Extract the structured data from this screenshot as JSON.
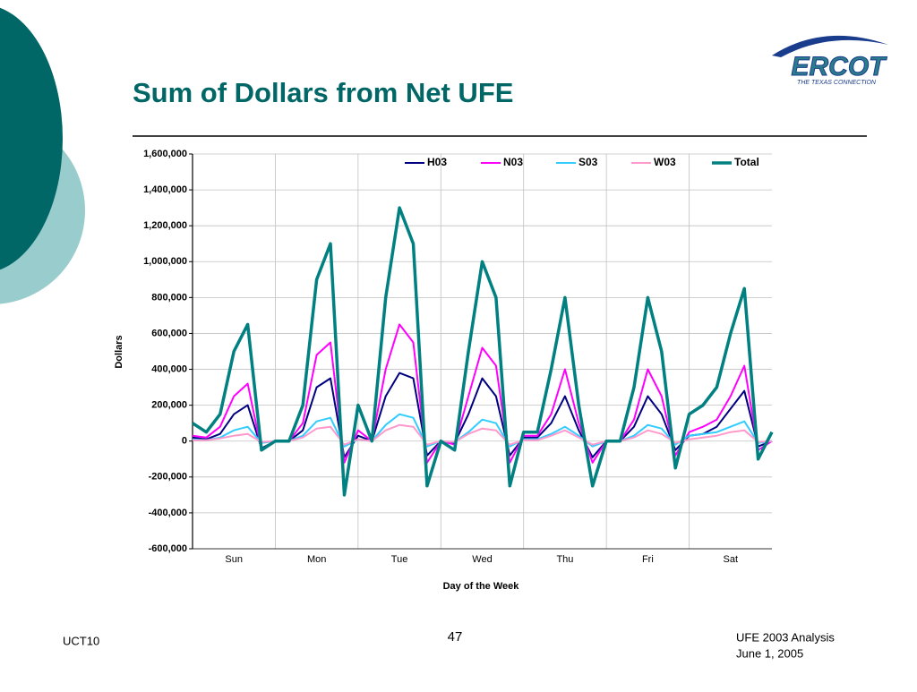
{
  "header": {
    "title": "Sum of Dollars from Net UFE",
    "logo": "ERCOT",
    "logo_tagline": "THE TEXAS CONNECTION"
  },
  "chart_data": {
    "type": "line",
    "xlabel": "Day of the Week",
    "ylabel": "Dollars",
    "x": [
      0,
      4,
      8,
      12,
      16,
      20,
      24,
      28,
      32,
      36,
      40,
      44,
      48,
      52,
      56,
      60,
      64,
      68,
      72,
      76,
      80,
      84,
      88,
      92,
      96,
      100,
      104,
      108,
      112,
      116,
      120,
      124,
      128,
      132,
      136,
      140,
      144,
      148,
      152,
      156,
      160,
      164,
      168
    ],
    "xlim": [
      0,
      168
    ],
    "xticks": [
      {
        "value": 12,
        "label": "Sun"
      },
      {
        "value": 36,
        "label": "Mon"
      },
      {
        "value": 60,
        "label": "Tue"
      },
      {
        "value": 84,
        "label": "Wed"
      },
      {
        "value": 108,
        "label": "Thu"
      },
      {
        "value": 132,
        "label": "Fri"
      },
      {
        "value": 156,
        "label": "Sat"
      }
    ],
    "ylim": [
      -600000,
      1600000
    ],
    "yticks": [
      {
        "value": -600000,
        "label": "-600,000"
      },
      {
        "value": -400000,
        "label": "-400,000"
      },
      {
        "value": -200000,
        "label": "-200,000"
      },
      0,
      {
        "value": 200000,
        "label": "200,000"
      },
      {
        "value": 400000,
        "label": "400,000"
      },
      {
        "value": 600000,
        "label": "600,000"
      },
      {
        "value": 800000,
        "label": "800,000"
      },
      {
        "value": 1000000,
        "label": "1,000,000"
      },
      {
        "value": 1200000,
        "label": "1,200,000"
      },
      {
        "value": 1400000,
        "label": "1,400,000"
      },
      {
        "value": 1600000,
        "label": "1,600,000"
      }
    ],
    "grid": true,
    "legend": "top",
    "series": [
      {
        "name": "H03",
        "color": "#000080",
        "values": [
          20000,
          10000,
          40000,
          150000,
          200000,
          -40000,
          0,
          0,
          60000,
          300000,
          350000,
          -90000,
          30000,
          0,
          250000,
          380000,
          350000,
          -80000,
          0,
          -10000,
          150000,
          350000,
          250000,
          -80000,
          20000,
          20000,
          100000,
          250000,
          60000,
          -90000,
          0,
          0,
          80000,
          250000,
          150000,
          -50000,
          30000,
          40000,
          80000,
          180000,
          280000,
          -30000,
          0
        ]
      },
      {
        "name": "N03",
        "color": "#ff00ff",
        "values": [
          30000,
          20000,
          80000,
          250000,
          320000,
          -50000,
          0,
          0,
          100000,
          480000,
          550000,
          -120000,
          60000,
          0,
          400000,
          650000,
          550000,
          -120000,
          0,
          -20000,
          250000,
          520000,
          420000,
          -120000,
          30000,
          30000,
          150000,
          400000,
          100000,
          -120000,
          0,
          0,
          120000,
          400000,
          250000,
          -80000,
          50000,
          80000,
          120000,
          250000,
          420000,
          -50000,
          0
        ]
      },
      {
        "name": "S03",
        "color": "#33ccff",
        "values": [
          10000,
          5000,
          20000,
          60000,
          80000,
          -10000,
          0,
          0,
          30000,
          110000,
          130000,
          -30000,
          10000,
          0,
          90000,
          150000,
          130000,
          -30000,
          0,
          -5000,
          50000,
          120000,
          100000,
          -30000,
          10000,
          10000,
          40000,
          80000,
          30000,
          -30000,
          0,
          0,
          30000,
          90000,
          70000,
          -20000,
          30000,
          40000,
          50000,
          80000,
          110000,
          -10000,
          0
        ]
      },
      {
        "name": "W03",
        "color": "#ff99cc",
        "values": [
          5000,
          5000,
          15000,
          30000,
          40000,
          -5000,
          0,
          0,
          20000,
          70000,
          80000,
          -20000,
          10000,
          0,
          60000,
          90000,
          80000,
          -20000,
          0,
          -5000,
          40000,
          70000,
          60000,
          -20000,
          5000,
          5000,
          30000,
          60000,
          20000,
          -20000,
          0,
          0,
          20000,
          60000,
          40000,
          -10000,
          10000,
          20000,
          30000,
          50000,
          60000,
          -5000,
          0
        ]
      },
      {
        "name": "Total",
        "color": "#008080",
        "values": [
          100000,
          50000,
          150000,
          500000,
          650000,
          -50000,
          0,
          0,
          200000,
          900000,
          1100000,
          -300000,
          200000,
          0,
          800000,
          1300000,
          1100000,
          -250000,
          0,
          -50000,
          500000,
          1000000,
          800000,
          -250000,
          50000,
          50000,
          400000,
          800000,
          200000,
          -250000,
          0,
          0,
          300000,
          800000,
          500000,
          -150000,
          150000,
          200000,
          300000,
          600000,
          850000,
          -100000,
          50000
        ]
      }
    ]
  },
  "footer": {
    "left": "UCT10",
    "page": "47",
    "right_line1": "UFE 2003 Analysis",
    "right_line2": "June 1, 2005"
  }
}
